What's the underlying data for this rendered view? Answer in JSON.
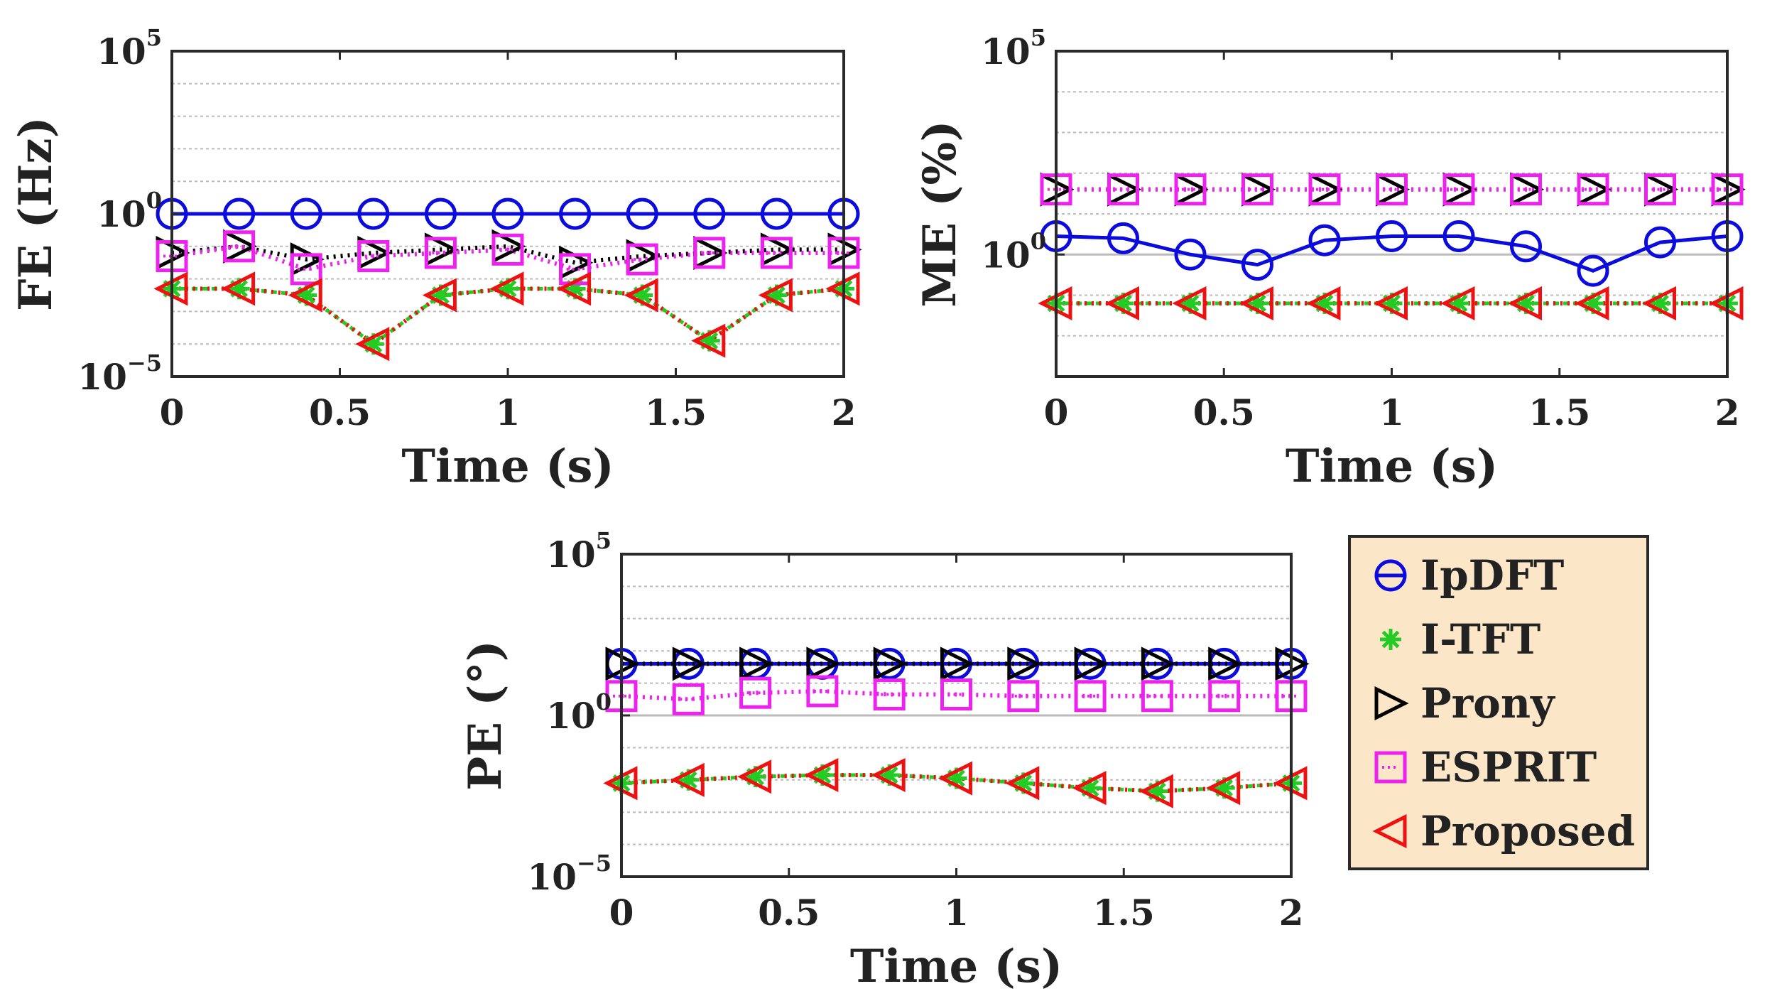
{
  "chart_data": [
    {
      "type": "line",
      "id": "fe",
      "ylabel": "FE (Hz)",
      "xlabel": "Time (s)",
      "yscale": "log",
      "ylim_exp": [
        -5,
        5
      ],
      "xlim": [
        0,
        2
      ],
      "x": [
        0,
        0.2,
        0.4,
        0.6,
        0.8,
        1.0,
        1.2,
        1.4,
        1.6,
        1.8,
        2.0
      ],
      "series": [
        {
          "name": "IpDFT",
          "log10": [
            0.0,
            0.0,
            0.0,
            0.0,
            0.0,
            0.0,
            0.0,
            0.0,
            0.0,
            0.0,
            0.0
          ]
        },
        {
          "name": "I-TFT",
          "log10": [
            -2.3,
            -2.3,
            -2.5,
            -4.0,
            -2.5,
            -2.3,
            -2.3,
            -2.5,
            -3.9,
            -2.5,
            -2.3
          ]
        },
        {
          "name": "Prony",
          "log10": [
            -1.2,
            -1.0,
            -1.4,
            -1.2,
            -1.1,
            -1.0,
            -1.5,
            -1.3,
            -1.2,
            -1.1,
            -1.1
          ]
        },
        {
          "name": "ESPRIT",
          "log10": [
            -1.3,
            -1.0,
            -1.7,
            -1.3,
            -1.2,
            -1.1,
            -1.7,
            -1.4,
            -1.2,
            -1.2,
            -1.2
          ]
        },
        {
          "name": "Proposed",
          "log10": [
            -2.3,
            -2.3,
            -2.5,
            -4.0,
            -2.5,
            -2.3,
            -2.3,
            -2.5,
            -3.9,
            -2.5,
            -2.3
          ]
        }
      ],
      "xticks": [
        "0",
        "0.5",
        "1",
        "1.5",
        "2"
      ],
      "yticks": [
        {
          "base": "10",
          "exp": "−5"
        },
        {
          "base": "10",
          "exp": "0"
        },
        {
          "base": "10",
          "exp": "5"
        }
      ]
    },
    {
      "type": "line",
      "id": "me",
      "ylabel": "ME (%)",
      "xlabel": "Time (s)",
      "yscale": "log",
      "ylim_exp": [
        -3,
        5
      ],
      "xlim": [
        0,
        2
      ],
      "x": [
        0,
        0.2,
        0.4,
        0.6,
        0.8,
        1.0,
        1.2,
        1.4,
        1.6,
        1.8,
        2.0
      ],
      "series": [
        {
          "name": "IpDFT",
          "log10": [
            0.45,
            0.4,
            0.0,
            -0.25,
            0.35,
            0.45,
            0.45,
            0.2,
            -0.4,
            0.3,
            0.45
          ]
        },
        {
          "name": "I-TFT",
          "log10": [
            -1.2,
            -1.2,
            -1.2,
            -1.2,
            -1.2,
            -1.2,
            -1.2,
            -1.2,
            -1.2,
            -1.2,
            -1.2
          ]
        },
        {
          "name": "Prony",
          "log10": [
            1.6,
            1.6,
            1.6,
            1.6,
            1.6,
            1.6,
            1.6,
            1.6,
            1.6,
            1.6,
            1.6
          ]
        },
        {
          "name": "ESPRIT",
          "log10": [
            1.6,
            1.6,
            1.6,
            1.6,
            1.6,
            1.6,
            1.6,
            1.6,
            1.6,
            1.6,
            1.6
          ]
        },
        {
          "name": "Proposed",
          "log10": [
            -1.2,
            -1.2,
            -1.2,
            -1.2,
            -1.2,
            -1.2,
            -1.2,
            -1.2,
            -1.2,
            -1.2,
            -1.2
          ]
        }
      ],
      "xticks": [
        "0",
        "0.5",
        "1",
        "1.5",
        "2"
      ],
      "yticks": [
        {
          "base": "10",
          "exp": "0"
        },
        {
          "base": "10",
          "exp": "5"
        }
      ]
    },
    {
      "type": "line",
      "id": "pe",
      "ylabel": "PE (°)",
      "xlabel": "Time (s)",
      "yscale": "log",
      "ylim_exp": [
        -5,
        5
      ],
      "xlim": [
        0,
        2
      ],
      "x": [
        0,
        0.2,
        0.4,
        0.6,
        0.8,
        1.0,
        1.2,
        1.4,
        1.6,
        1.8,
        2.0
      ],
      "series": [
        {
          "name": "IpDFT",
          "log10": [
            1.6,
            1.6,
            1.6,
            1.6,
            1.6,
            1.6,
            1.6,
            1.6,
            1.6,
            1.6,
            1.6
          ]
        },
        {
          "name": "I-TFT",
          "log10": [
            -2.1,
            -2.0,
            -1.9,
            -1.85,
            -1.85,
            -1.95,
            -2.1,
            -2.25,
            -2.35,
            -2.25,
            -2.1
          ]
        },
        {
          "name": "Prony",
          "log10": [
            1.6,
            1.6,
            1.6,
            1.6,
            1.6,
            1.6,
            1.6,
            1.6,
            1.6,
            1.6,
            1.6
          ]
        },
        {
          "name": "ESPRIT",
          "log10": [
            0.6,
            0.5,
            0.7,
            0.75,
            0.65,
            0.65,
            0.6,
            0.6,
            0.6,
            0.6,
            0.6
          ]
        },
        {
          "name": "Proposed",
          "log10": [
            -2.1,
            -2.0,
            -1.9,
            -1.85,
            -1.85,
            -1.95,
            -2.1,
            -2.25,
            -2.35,
            -2.25,
            -2.1
          ]
        }
      ],
      "xticks": [
        "0",
        "0.5",
        "1",
        "1.5",
        "2"
      ],
      "yticks": [
        {
          "base": "10",
          "exp": "−5"
        },
        {
          "base": "10",
          "exp": "0"
        },
        {
          "base": "10",
          "exp": "5"
        }
      ]
    }
  ],
  "legend": {
    "placement": "right of bottom chart",
    "entries": [
      "IpDFT",
      "I-TFT",
      "Prony",
      "ESPRIT",
      "Proposed"
    ]
  },
  "colors": {
    "IpDFT": "#0b0bdd",
    "I-TFT": "#22cc22",
    "Prony": "#000000",
    "ESPRIT": "#ee22ee",
    "Proposed": "#ee1111",
    "legend_bg": "#fbe6c8",
    "grid": "#bbbbbb",
    "axis": "#2a2a2a"
  }
}
